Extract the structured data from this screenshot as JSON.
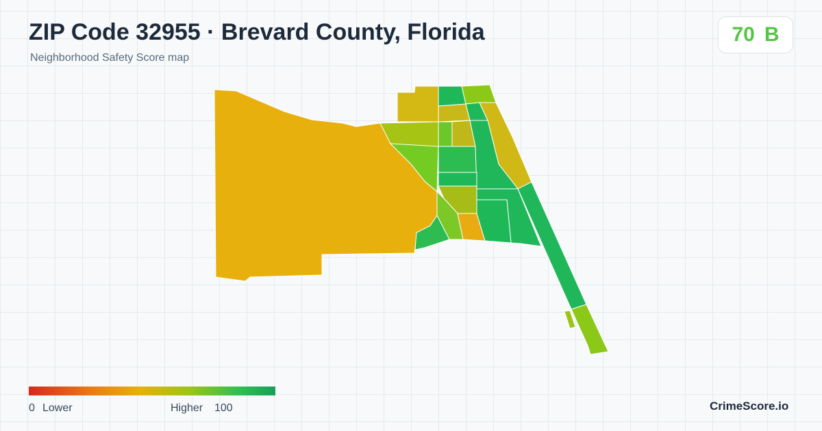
{
  "header": {
    "title": "ZIP Code 32955 · Brevard County, Florida",
    "subtitle": "Neighborhood Safety Score map"
  },
  "score": {
    "value": 70,
    "grade": "B"
  },
  "legend": {
    "min": 0,
    "min_label": "Lower",
    "max_label": "Higher",
    "max": 100
  },
  "brand": "CrimeScore.io"
}
